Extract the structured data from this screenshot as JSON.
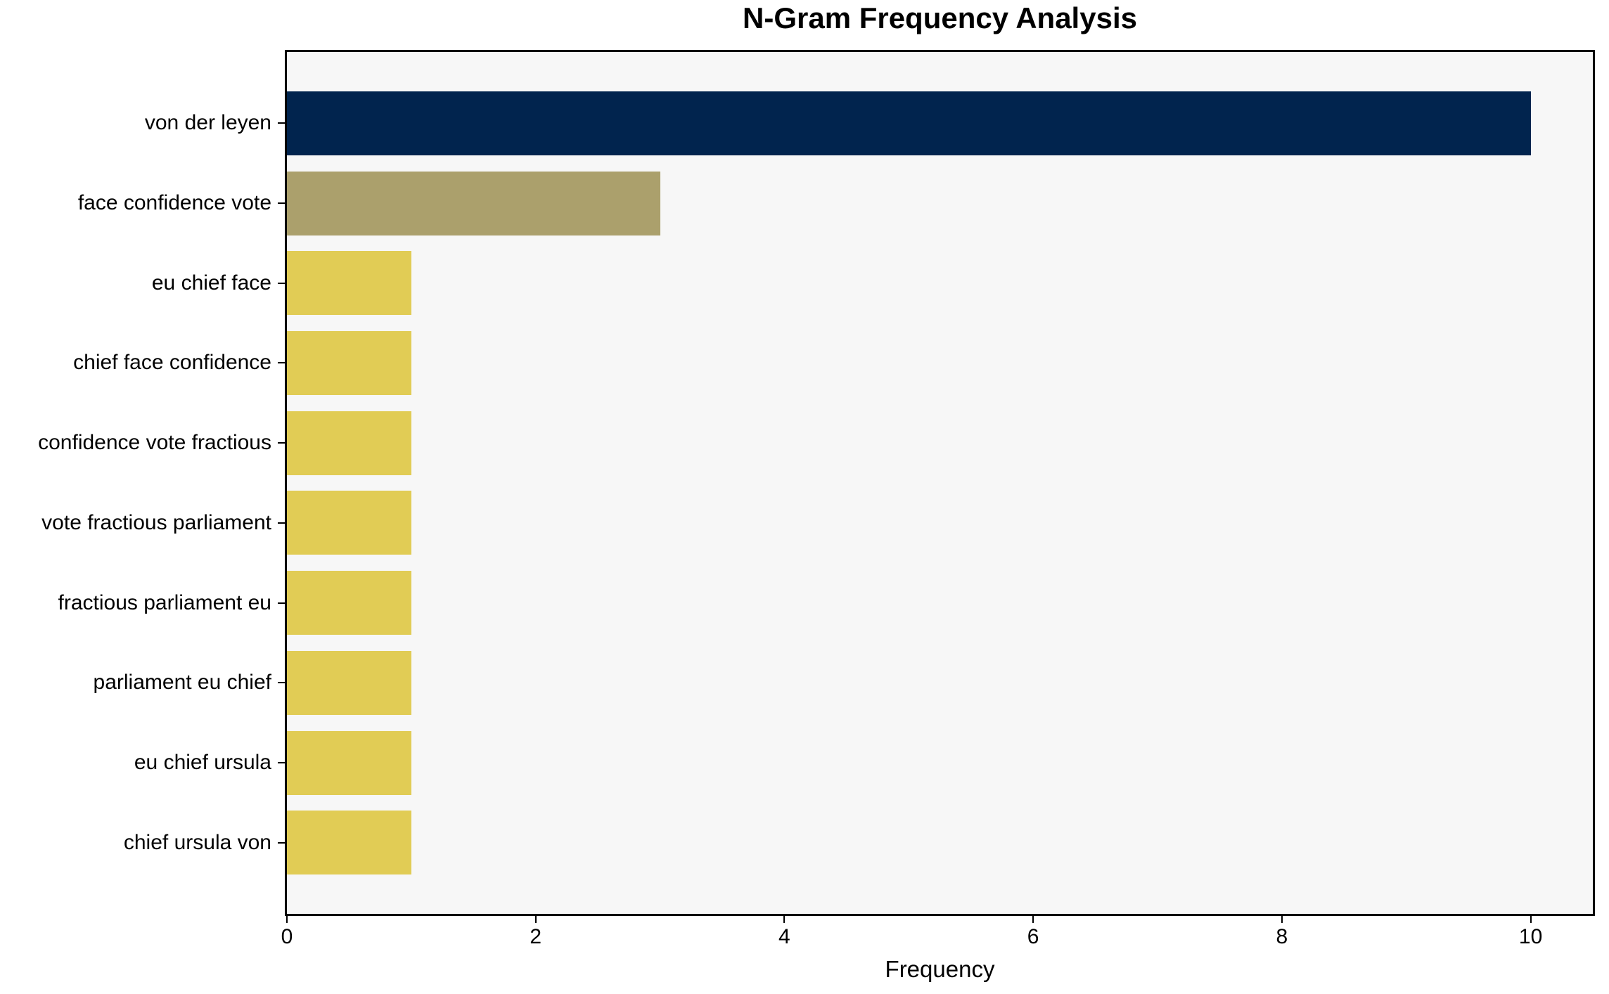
{
  "chart_data": {
    "type": "bar",
    "orientation": "horizontal",
    "title": "N-Gram Frequency Analysis",
    "xlabel": "Frequency",
    "ylabel": "",
    "categories": [
      "von der leyen",
      "face confidence vote",
      "eu chief face",
      "chief face confidence",
      "confidence vote fractious",
      "vote fractious parliament",
      "fractious parliament eu",
      "parliament eu chief",
      "eu chief ursula",
      "chief ursula von"
    ],
    "values": [
      10,
      3,
      1,
      1,
      1,
      1,
      1,
      1,
      1,
      1
    ],
    "bar_colors": [
      "#01244e",
      "#aba06c",
      "#e1cc55",
      "#e1cc55",
      "#e1cc55",
      "#e1cc55",
      "#e1cc55",
      "#e1cc55",
      "#e1cc55",
      "#e1cc55"
    ],
    "xlim": [
      0,
      10.5
    ],
    "xticks": [
      0,
      2,
      4,
      6,
      8,
      10
    ],
    "grid": false,
    "legend": "none",
    "plot_background": "#f7f7f7",
    "figure_background": "#ffffff",
    "spine_color": "#000000",
    "text_color": "#000000"
  }
}
